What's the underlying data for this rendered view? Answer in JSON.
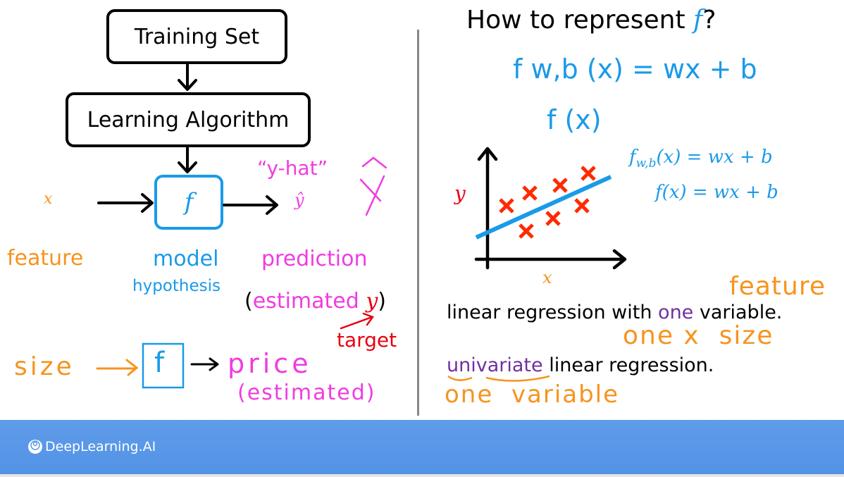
{
  "left": {
    "training_set": "Training Set",
    "learning_algorithm": "Learning Algorithm",
    "model_symbol": "f",
    "input_symbol": "x",
    "output_symbol": "ŷ",
    "y_hat_label": "“y-hat”",
    "y_hat_handwritten": "ŷ",
    "feature": "feature",
    "model": "model",
    "hypothesis": "hypothesis",
    "prediction": "prediction",
    "estimated_open": "(",
    "estimated": "estimated",
    "estimated_y": "y",
    "estimated_close": ")",
    "target": "target",
    "size": "size",
    "size_f": "f",
    "price": "price",
    "price_estimated": "(estimated)"
  },
  "right": {
    "title_prefix": "How to represent ",
    "title_symbol": "f",
    "title_suffix": "?",
    "handwritten_formula": "f w,b (x) = wx + b",
    "handwritten_fx": "f (x)",
    "formula_1": "f_{w,b}(x) = wx + b",
    "formula_1_main": "f",
    "formula_1_sub": "w,b",
    "formula_1_rest": "(x) = wx + b",
    "formula_2": "f(x) = wx + b",
    "y_axis_label": "y",
    "x_axis_label": "x",
    "feature_note": "feature",
    "linear_regression_pre": "linear regression with ",
    "linear_regression_one": "one",
    "linear_regression_post": " variable.",
    "one_x_size": "one x  size",
    "univariate": "univariate",
    "univariate_rest": " linear regression.",
    "one_variable": "one  variable"
  },
  "footer": {
    "brand": "DeepLearning.AI"
  },
  "colors": {
    "orange": "#f7931e",
    "blue": "#1a9ae8",
    "magenta": "#f03ce0",
    "red": "#e8000f",
    "cross": "#ff2a00",
    "purple": "#7030a0",
    "footer": "#5897e8"
  }
}
